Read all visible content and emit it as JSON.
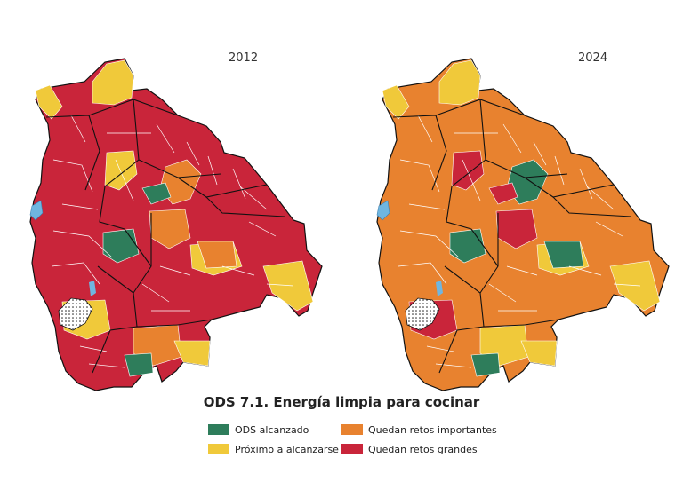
{
  "maps": [
    {
      "year": "2012",
      "base_category": "grandes",
      "regions": [
        {
          "cat": "proximo"
        },
        {
          "cat": "proximo"
        },
        {
          "cat": "importantes"
        },
        {
          "cat": "alcanzado"
        },
        {
          "cat": "proximo"
        },
        {
          "cat": "importantes"
        },
        {
          "cat": "proximo"
        },
        {
          "cat": "alcanzado"
        },
        {
          "cat": "proximo"
        },
        {
          "cat": "importantes"
        },
        {
          "cat": "proximo"
        },
        {
          "cat": "alcanzado"
        },
        {
          "cat": "importantes"
        },
        {
          "cat": "proximo"
        }
      ]
    },
    {
      "year": "2024",
      "base_category": "importantes",
      "regions": [
        {
          "cat": "proximo"
        },
        {
          "cat": "grandes"
        },
        {
          "cat": "alcanzado"
        },
        {
          "cat": "grandes"
        },
        {
          "cat": "proximo"
        },
        {
          "cat": "alcanzado"
        },
        {
          "cat": "proximo"
        },
        {
          "cat": "alcanzado"
        },
        {
          "cat": "grandes"
        },
        {
          "cat": "proximo"
        },
        {
          "cat": "proximo"
        },
        {
          "cat": "alcanzado"
        },
        {
          "cat": "grandes"
        },
        {
          "cat": "proximo"
        }
      ]
    }
  ],
  "title": "ODS 7.1. Energía limpia para cocinar",
  "legend": [
    {
      "key": "alcanzado",
      "label": "ODS alcanzado",
      "color": "#2e7d5b"
    },
    {
      "key": "proximo",
      "label": "Próximo a alcanzarse",
      "color": "#f0c93a"
    },
    {
      "key": "importantes",
      "label": "Quedan retos importantes",
      "color": "#e8822f"
    },
    {
      "key": "grandes",
      "label": "Quedan retos grandes",
      "color": "#c9253a"
    }
  ],
  "colors": {
    "water": "#6fb6e0",
    "no_data": "#ffffff",
    "boundary": "#111111"
  }
}
